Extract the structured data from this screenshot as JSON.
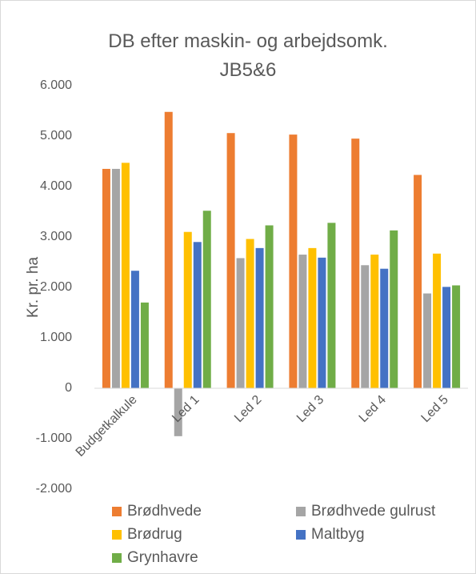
{
  "chart_data": {
    "type": "bar",
    "title": "DB efter maskin- og arbejdsomk. JB5&6",
    "y_label": "Kr. pr. ha",
    "categories": [
      "Budgetkalkule",
      "Led 1",
      "Led 2",
      "Led 3",
      "Led 4",
      "Led 5"
    ],
    "series": [
      {
        "name": "Brødhvede",
        "color": "#ed7d31",
        "values": [
          4350,
          5480,
          5060,
          5030,
          4950,
          4230
        ]
      },
      {
        "name": "Brødhvede gulrust",
        "color": "#a5a5a5",
        "values": [
          4350,
          -950,
          2580,
          2650,
          2440,
          1880
        ]
      },
      {
        "name": "Brødrug",
        "color": "#ffc000",
        "values": [
          4470,
          3100,
          2960,
          2780,
          2650,
          2670
        ]
      },
      {
        "name": "Maltbyg",
        "color": "#4472c4",
        "values": [
          2330,
          2900,
          2780,
          2590,
          2370,
          2010
        ]
      },
      {
        "name": "Grynhavre",
        "color": "#70ad47",
        "values": [
          1700,
          3520,
          3230,
          3280,
          3130,
          2040
        ]
      }
    ],
    "ylim": [
      -2000,
      6000
    ],
    "yticks": [
      {
        "value": -2000,
        "label": "-2.000"
      },
      {
        "value": -1000,
        "label": "-1.000"
      },
      0,
      {
        "value": 1000,
        "label": "1.000"
      },
      {
        "value": 2000,
        "label": "2.000"
      },
      {
        "value": 3000,
        "label": "3.000"
      },
      {
        "value": 4000,
        "label": "4.000"
      },
      {
        "value": 5000,
        "label": "5.000"
      },
      {
        "value": 6000,
        "label": "6.000"
      }
    ],
    "grid": false,
    "legend": "bottom"
  }
}
